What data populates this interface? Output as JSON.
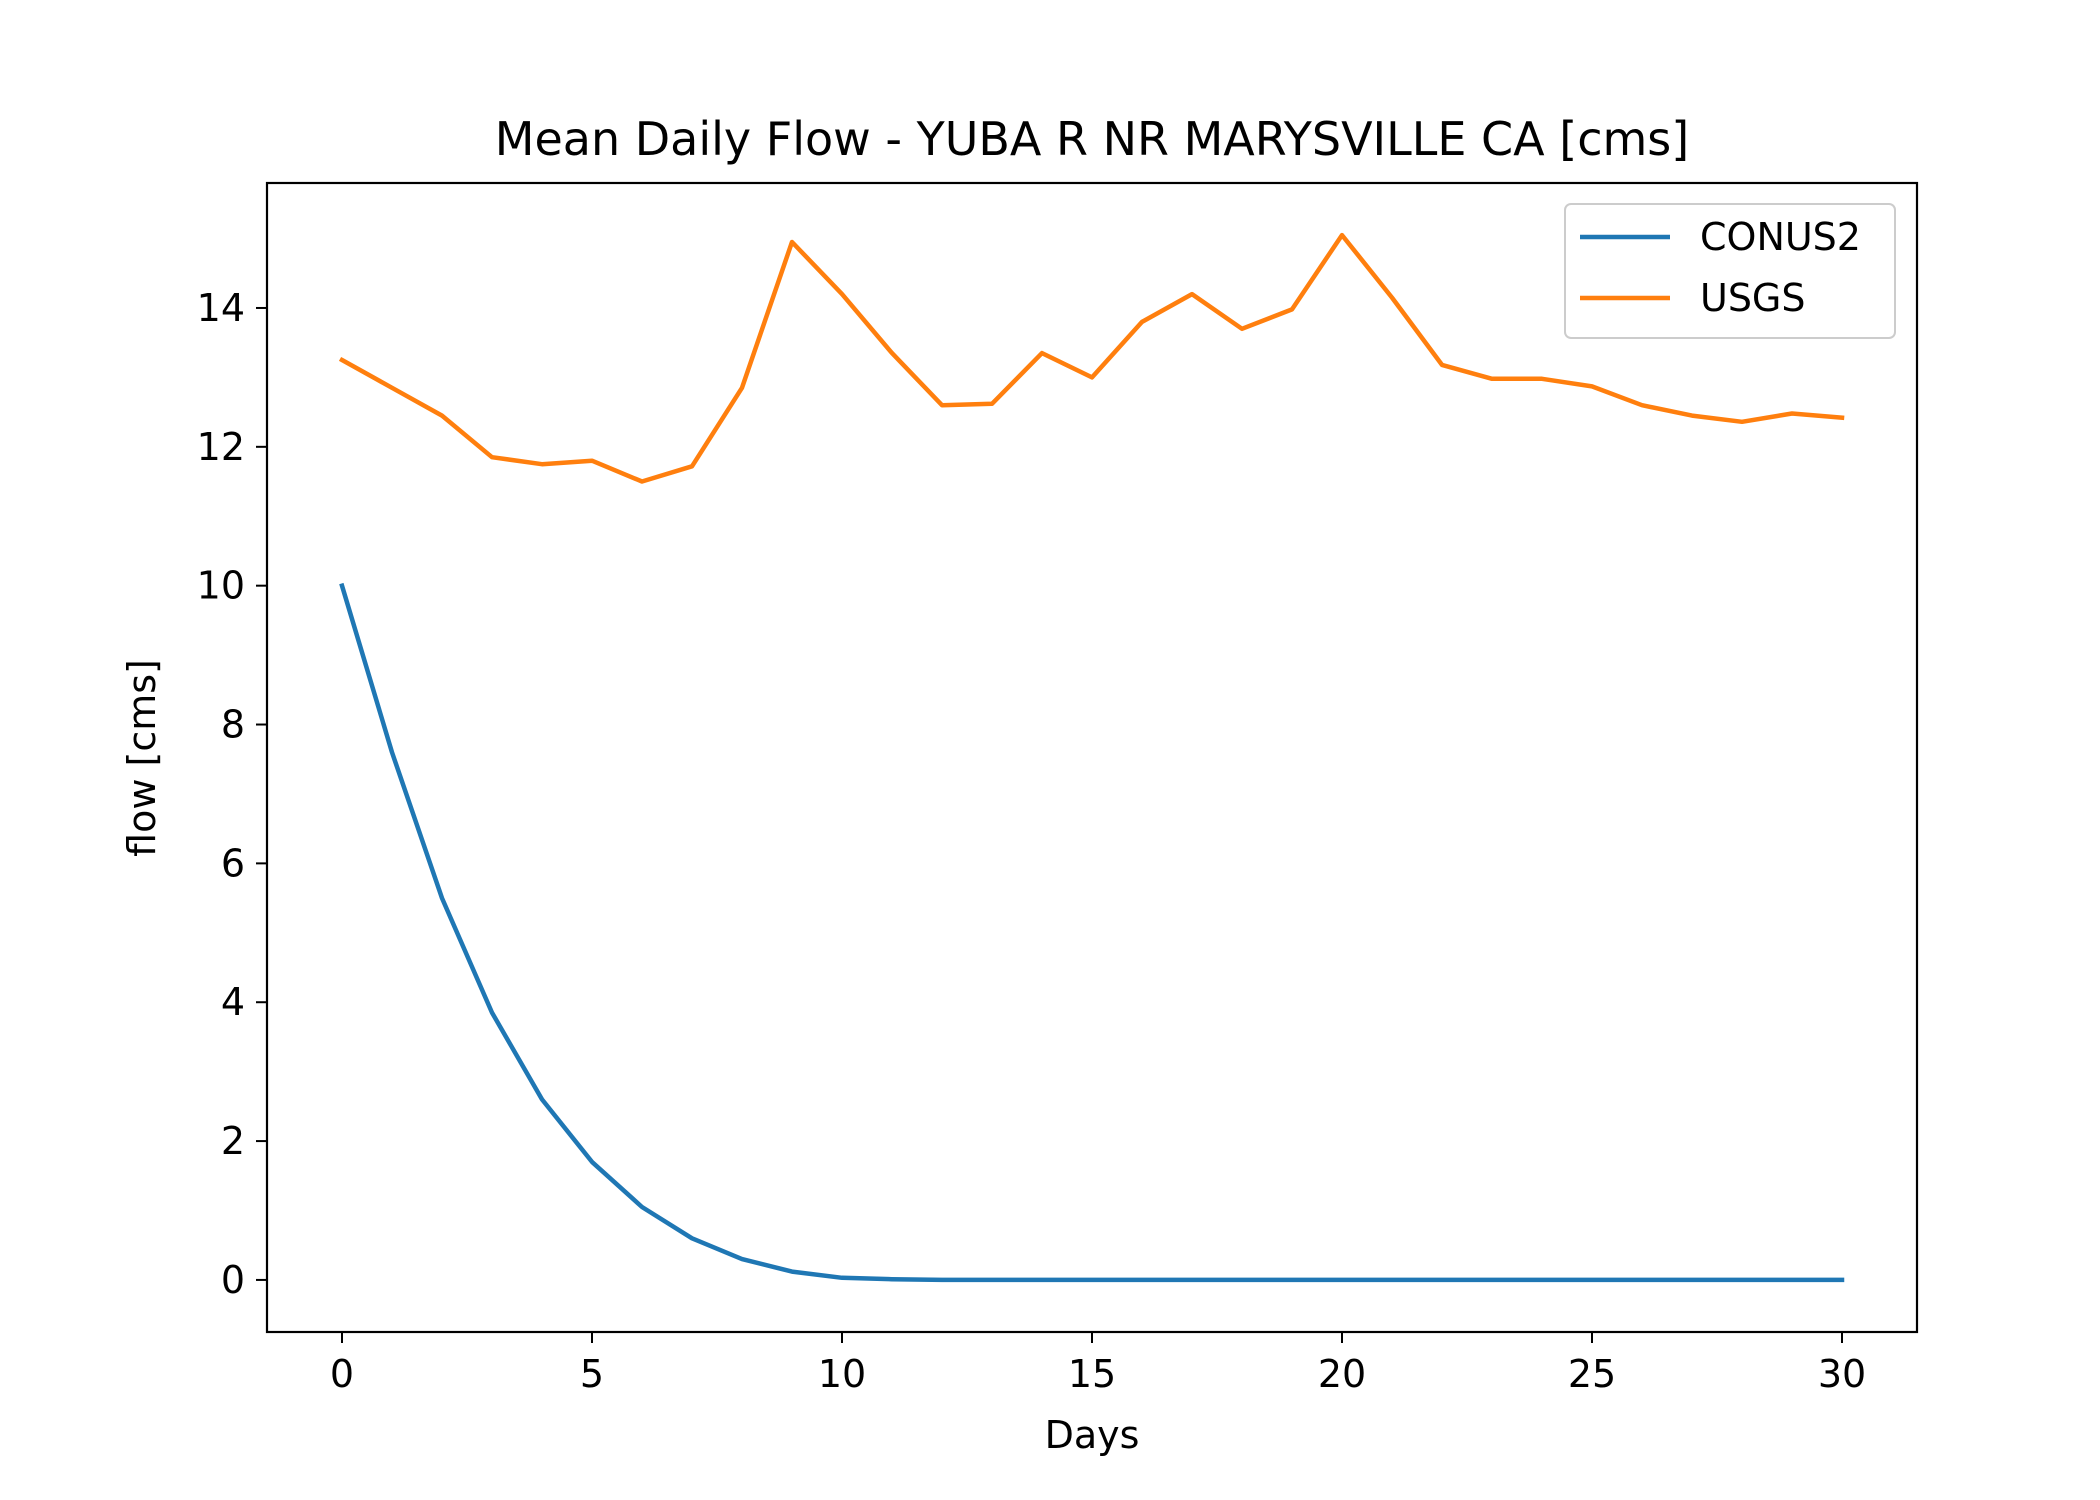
{
  "chart_data": {
    "type": "line",
    "title": "Mean Daily Flow - YUBA R NR MARYSVILLE CA [cms]",
    "xlabel": "Days",
    "ylabel": "flow [cms]",
    "xlim": [
      -1.5,
      31.5
    ],
    "ylim": [
      -0.75,
      15.8
    ],
    "xticks": [
      0,
      5,
      10,
      15,
      20,
      25,
      30
    ],
    "yticks": [
      0,
      2,
      4,
      6,
      8,
      10,
      12,
      14
    ],
    "grid": false,
    "legend_position": "top-right",
    "x": [
      0,
      1,
      2,
      3,
      4,
      5,
      6,
      7,
      8,
      9,
      10,
      11,
      12,
      13,
      14,
      15,
      16,
      17,
      18,
      19,
      20,
      21,
      22,
      23,
      24,
      25,
      26,
      27,
      28,
      29,
      30
    ],
    "series": [
      {
        "name": "CONUS2",
        "color": "#1f77b4",
        "values": [
          10.0,
          7.6,
          5.5,
          3.85,
          2.6,
          1.7,
          1.05,
          0.6,
          0.3,
          0.12,
          0.03,
          0.01,
          0,
          0,
          0,
          0,
          0,
          0,
          0,
          0,
          0,
          0,
          0,
          0,
          0,
          0,
          0,
          0,
          0,
          0,
          0
        ]
      },
      {
        "name": "USGS",
        "color": "#ff7f0e",
        "values": [
          13.25,
          12.85,
          12.45,
          11.85,
          11.75,
          11.8,
          11.5,
          11.72,
          12.85,
          14.95,
          14.2,
          13.35,
          12.6,
          12.62,
          13.35,
          13.0,
          13.8,
          14.2,
          13.7,
          13.98,
          15.05,
          14.15,
          13.18,
          12.98,
          12.98,
          12.87,
          12.6,
          12.45,
          12.36,
          12.48,
          12.42
        ]
      }
    ]
  }
}
